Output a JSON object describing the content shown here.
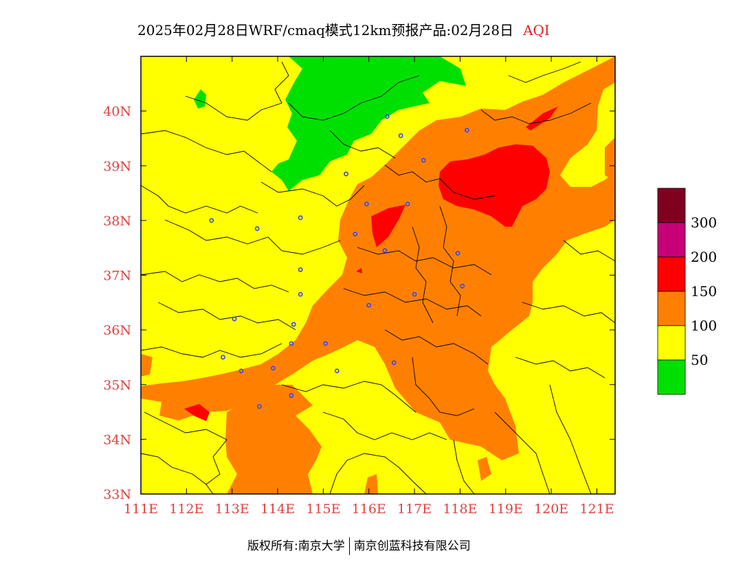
{
  "title": "2025年02月28日WRF/cmaq模式12km预报产品:02月28日",
  "variable": "AQI",
  "footer": {
    "left": "版权所有:南京大学",
    "right": "南京创蓝科技有限公司"
  },
  "axes": {
    "x_ticks": [
      "111E",
      "112E",
      "113E",
      "114E",
      "115E",
      "116E",
      "117E",
      "118E",
      "119E",
      "120E",
      "121E"
    ],
    "y_ticks": [
      "40N",
      "39N",
      "38N",
      "37N",
      "36N",
      "35N",
      "34N",
      "33N"
    ],
    "tick_color": "#e04040",
    "lon_range": [
      111,
      121.4
    ],
    "lat_range": [
      33,
      41
    ]
  },
  "legend": {
    "labels": [
      "300",
      "200",
      "150",
      "100",
      "50"
    ],
    "colors": [
      "#800020",
      "#c80078",
      "#ff0000",
      "#ff8000",
      "#ffff00",
      "#00e000"
    ]
  },
  "colors": {
    "good": "#00e000",
    "moderate": "#ffff00",
    "light": "#ff8000",
    "medium": "#ff0000",
    "city_marker": "#3344ff"
  },
  "city_markers": [
    [
      116.4,
      39.9
    ],
    [
      116.7,
      39.55
    ],
    [
      117.2,
      39.1
    ],
    [
      118.15,
      39.65
    ],
    [
      115.5,
      38.85
    ],
    [
      115.95,
      38.3
    ],
    [
      115.7,
      37.75
    ],
    [
      116.85,
      38.3
    ],
    [
      116.35,
      37.45
    ],
    [
      112.55,
      38.0
    ],
    [
      113.55,
      37.85
    ],
    [
      114.5,
      38.05
    ],
    [
      114.5,
      37.1
    ],
    [
      114.5,
      36.65
    ],
    [
      114.35,
      36.1
    ],
    [
      114.3,
      35.75
    ],
    [
      115.05,
      35.75
    ],
    [
      116.0,
      36.45
    ],
    [
      117.0,
      36.65
    ],
    [
      117.95,
      37.4
    ],
    [
      118.05,
      36.8
    ],
    [
      116.55,
      35.4
    ],
    [
      115.3,
      35.25
    ],
    [
      112.8,
      35.5
    ],
    [
      113.2,
      35.25
    ],
    [
      113.9,
      35.3
    ],
    [
      114.3,
      34.8
    ],
    [
      113.6,
      34.6
    ],
    [
      113.05,
      36.2
    ]
  ]
}
